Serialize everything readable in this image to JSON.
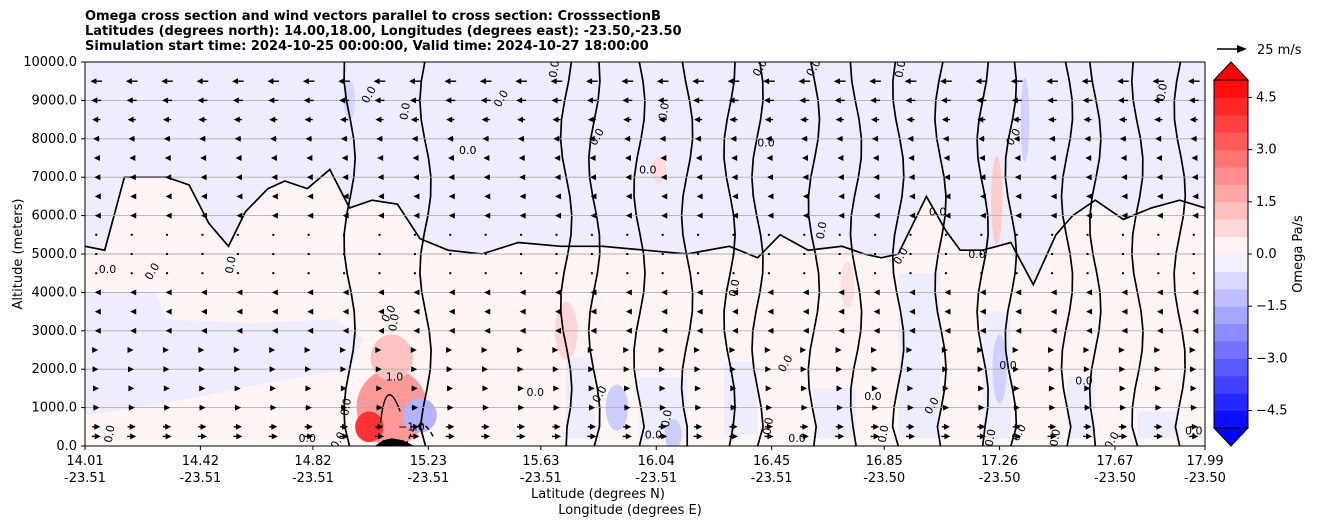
{
  "title_lines": [
    "Omega cross section and wind vectors parallel to cross section: CrosssectionB",
    "Latitudes (degrees north): 14.00,18.00, Longitudes (degrees east): -23.50,-23.50",
    "Simulation start time: 2024-10-25 00:00:00, Valid time: 2024-10-27 18:00:00"
  ],
  "chart_data": {
    "type": "heatmap",
    "variable": "Omega",
    "colorbar_label": "Omega Pa/s",
    "colorbar_ticks": [
      "4.5",
      "3.0",
      "1.5",
      "0.0",
      "−1.5",
      "−3.0",
      "−4.5"
    ],
    "colorbar_tick_values": [
      4.5,
      3.0,
      1.5,
      0.0,
      -1.5,
      -3.0,
      -4.5
    ],
    "colorbar_range": [
      -5.0,
      5.0
    ],
    "colormap": "bwr",
    "ylabel": "Altitude (meters)",
    "xlabel_lat": "Latitude (degrees N)",
    "xlabel_lon": "Longitude (degrees E)",
    "ylim": [
      0,
      10000
    ],
    "y_ticks": [
      "10000.0",
      "9000.0",
      "8000.0",
      "7000.0",
      "6000.0",
      "5000.0",
      "4000.0",
      "3000.0",
      "2000.0",
      "1000.0",
      "0.0"
    ],
    "y_tick_values": [
      10000,
      9000,
      8000,
      7000,
      6000,
      5000,
      4000,
      3000,
      2000,
      1000,
      0
    ],
    "x_range_lat": [
      14.01,
      17.99
    ],
    "x_tick_lats": [
      14.01,
      14.42,
      14.82,
      15.23,
      15.63,
      16.04,
      16.45,
      16.85,
      17.26,
      17.67,
      17.99
    ],
    "x_ticks_lat": [
      "14.01",
      "14.42",
      "14.82",
      "15.23",
      "15.63",
      "16.04",
      "16.45",
      "16.85",
      "17.26",
      "17.67",
      "17.99"
    ],
    "x_ticks_lon": [
      "-23.51",
      "-23.51",
      "-23.51",
      "-23.51",
      "-23.51",
      "-23.51",
      "-23.51",
      "-23.50",
      "-23.50",
      "-23.50",
      "-23.50"
    ],
    "grid": "horizontal",
    "wind_reference": "25 m/s",
    "contour_labels": [
      {
        "text": "0.0",
        "lat": 14.11,
        "alt": 300
      },
      {
        "text": "0.0",
        "lat": 14.09,
        "alt": 4500
      },
      {
        "text": "0.0",
        "lat": 14.26,
        "alt": 4500
      },
      {
        "text": "0.0",
        "lat": 14.54,
        "alt": 4700
      },
      {
        "text": "0.0",
        "lat": 14.8,
        "alt": 100
      },
      {
        "text": "0.0",
        "lat": 14.92,
        "alt": 100
      },
      {
        "text": "0.0",
        "lat": 14.95,
        "alt": 1000
      },
      {
        "text": "1.0",
        "lat": 15.11,
        "alt": 1700
      },
      {
        "text": "0.0",
        "lat": 15.1,
        "alt": 3400
      },
      {
        "text": "0.0",
        "lat": 15.12,
        "alt": 3200
      },
      {
        "text": "−1.0",
        "lat": 15.17,
        "alt": 400
      },
      {
        "text": "0.0",
        "lat": 15.03,
        "alt": 9100
      },
      {
        "text": "0.0",
        "lat": 15.16,
        "alt": 8700
      },
      {
        "text": "0.0",
        "lat": 15.37,
        "alt": 7600
      },
      {
        "text": "0.0",
        "lat": 15.5,
        "alt": 9000
      },
      {
        "text": "0.0",
        "lat": 15.69,
        "alt": 9800
      },
      {
        "text": "0.0",
        "lat": 15.61,
        "alt": 1300
      },
      {
        "text": "0.0",
        "lat": 15.84,
        "alt": 8000
      },
      {
        "text": "0.0",
        "lat": 16.08,
        "alt": 8700
      },
      {
        "text": "0.0",
        "lat": 16.01,
        "alt": 7100
      },
      {
        "text": "0.0",
        "lat": 15.85,
        "alt": 1300
      },
      {
        "text": "0.0",
        "lat": 16.09,
        "alt": 700
      },
      {
        "text": "0.0",
        "lat": 16.03,
        "alt": 200
      },
      {
        "text": "0.0",
        "lat": 16.42,
        "alt": 9800
      },
      {
        "text": "0.0",
        "lat": 16.33,
        "alt": 4100
      },
      {
        "text": "0.0",
        "lat": 16.43,
        "alt": 7800
      },
      {
        "text": "0.0",
        "lat": 16.51,
        "alt": 2100
      },
      {
        "text": "0.0",
        "lat": 16.45,
        "alt": 500
      },
      {
        "text": "0.0",
        "lat": 16.54,
        "alt": 100
      },
      {
        "text": "0.0",
        "lat": 16.61,
        "alt": 9800
      },
      {
        "text": "0.0",
        "lat": 16.64,
        "alt": 5600
      },
      {
        "text": "0.0",
        "lat": 16.81,
        "alt": 1200
      },
      {
        "text": "0.0",
        "lat": 16.92,
        "alt": 4900
      },
      {
        "text": "0.0",
        "lat": 16.92,
        "alt": 9800
      },
      {
        "text": "0.0",
        "lat": 17.04,
        "alt": 6000
      },
      {
        "text": "0.0",
        "lat": 17.03,
        "alt": 1000
      },
      {
        "text": "0.0",
        "lat": 16.86,
        "alt": 300
      },
      {
        "text": "0.0",
        "lat": 17.18,
        "alt": 4900
      },
      {
        "text": "0.0",
        "lat": 17.32,
        "alt": 8000
      },
      {
        "text": "0.0",
        "lat": 17.24,
        "alt": 200
      },
      {
        "text": "0.0",
        "lat": 17.29,
        "alt": 2000
      },
      {
        "text": "0.0",
        "lat": 17.34,
        "alt": 300
      },
      {
        "text": "0.0",
        "lat": 17.47,
        "alt": 200
      },
      {
        "text": "0.0",
        "lat": 17.56,
        "alt": 1600
      },
      {
        "text": "0.0",
        "lat": 17.67,
        "alt": 100
      },
      {
        "text": "0.0",
        "lat": 17.85,
        "alt": 9200
      },
      {
        "text": "0.0",
        "lat": 17.95,
        "alt": 300
      }
    ],
    "patches": [
      {
        "lat": 15.1,
        "alt": 1000,
        "w": 0.25,
        "h": 2000,
        "value": 2.0
      },
      {
        "lat": 15.02,
        "alt": 500,
        "w": 0.1,
        "h": 800,
        "value": 4.0
      },
      {
        "lat": 15.1,
        "alt": 2300,
        "w": 0.15,
        "h": 1200,
        "value": 1.2
      },
      {
        "lat": 15.2,
        "alt": 800,
        "w": 0.12,
        "h": 900,
        "value": -1.5
      },
      {
        "lat": 15.72,
        "alt": 3000,
        "w": 0.08,
        "h": 1500,
        "value": 0.8
      },
      {
        "lat": 16.72,
        "alt": 4200,
        "w": 0.05,
        "h": 1200,
        "value": 0.6
      },
      {
        "lat": 16.1,
        "alt": 300,
        "w": 0.06,
        "h": 800,
        "value": -1.0
      },
      {
        "lat": 15.9,
        "alt": 1000,
        "w": 0.08,
        "h": 1200,
        "value": -1.0
      },
      {
        "lat": 17.25,
        "alt": 6400,
        "w": 0.04,
        "h": 2300,
        "value": 1.0
      },
      {
        "lat": 17.26,
        "alt": 2000,
        "w": 0.05,
        "h": 1800,
        "value": -0.9
      },
      {
        "lat": 17.35,
        "alt": 8500,
        "w": 0.03,
        "h": 2200,
        "value": -0.9
      },
      {
        "lat": 14.95,
        "alt": 9000,
        "w": 0.04,
        "h": 1000,
        "value": -0.8
      },
      {
        "lat": 16.05,
        "alt": 7200,
        "w": 0.05,
        "h": 700,
        "value": 0.7
      }
    ],
    "terrain": [
      {
        "lat": 15.04,
        "alt": 0
      },
      {
        "lat": 15.07,
        "alt": 150
      },
      {
        "lat": 15.1,
        "alt": 200
      },
      {
        "lat": 15.14,
        "alt": 150
      },
      {
        "lat": 15.18,
        "alt": 0
      }
    ],
    "wind_levels_m": [
      250,
      500,
      1000,
      1500,
      2000,
      2500,
      3000,
      3500,
      4000,
      4500,
      5000,
      5500,
      6000,
      6500,
      7000,
      7500,
      8000,
      8500,
      9000,
      9500
    ],
    "wind_speeds_ms": [
      8,
      7,
      5,
      4,
      3,
      2,
      1,
      1,
      1,
      0,
      0,
      0,
      1,
      1,
      2,
      3,
      5,
      7,
      9,
      11
    ]
  },
  "colors": {
    "positive_max": "#ff0000",
    "negative_max": "#0000ff",
    "contour": "#000000",
    "grid": "#b0b0b0"
  }
}
